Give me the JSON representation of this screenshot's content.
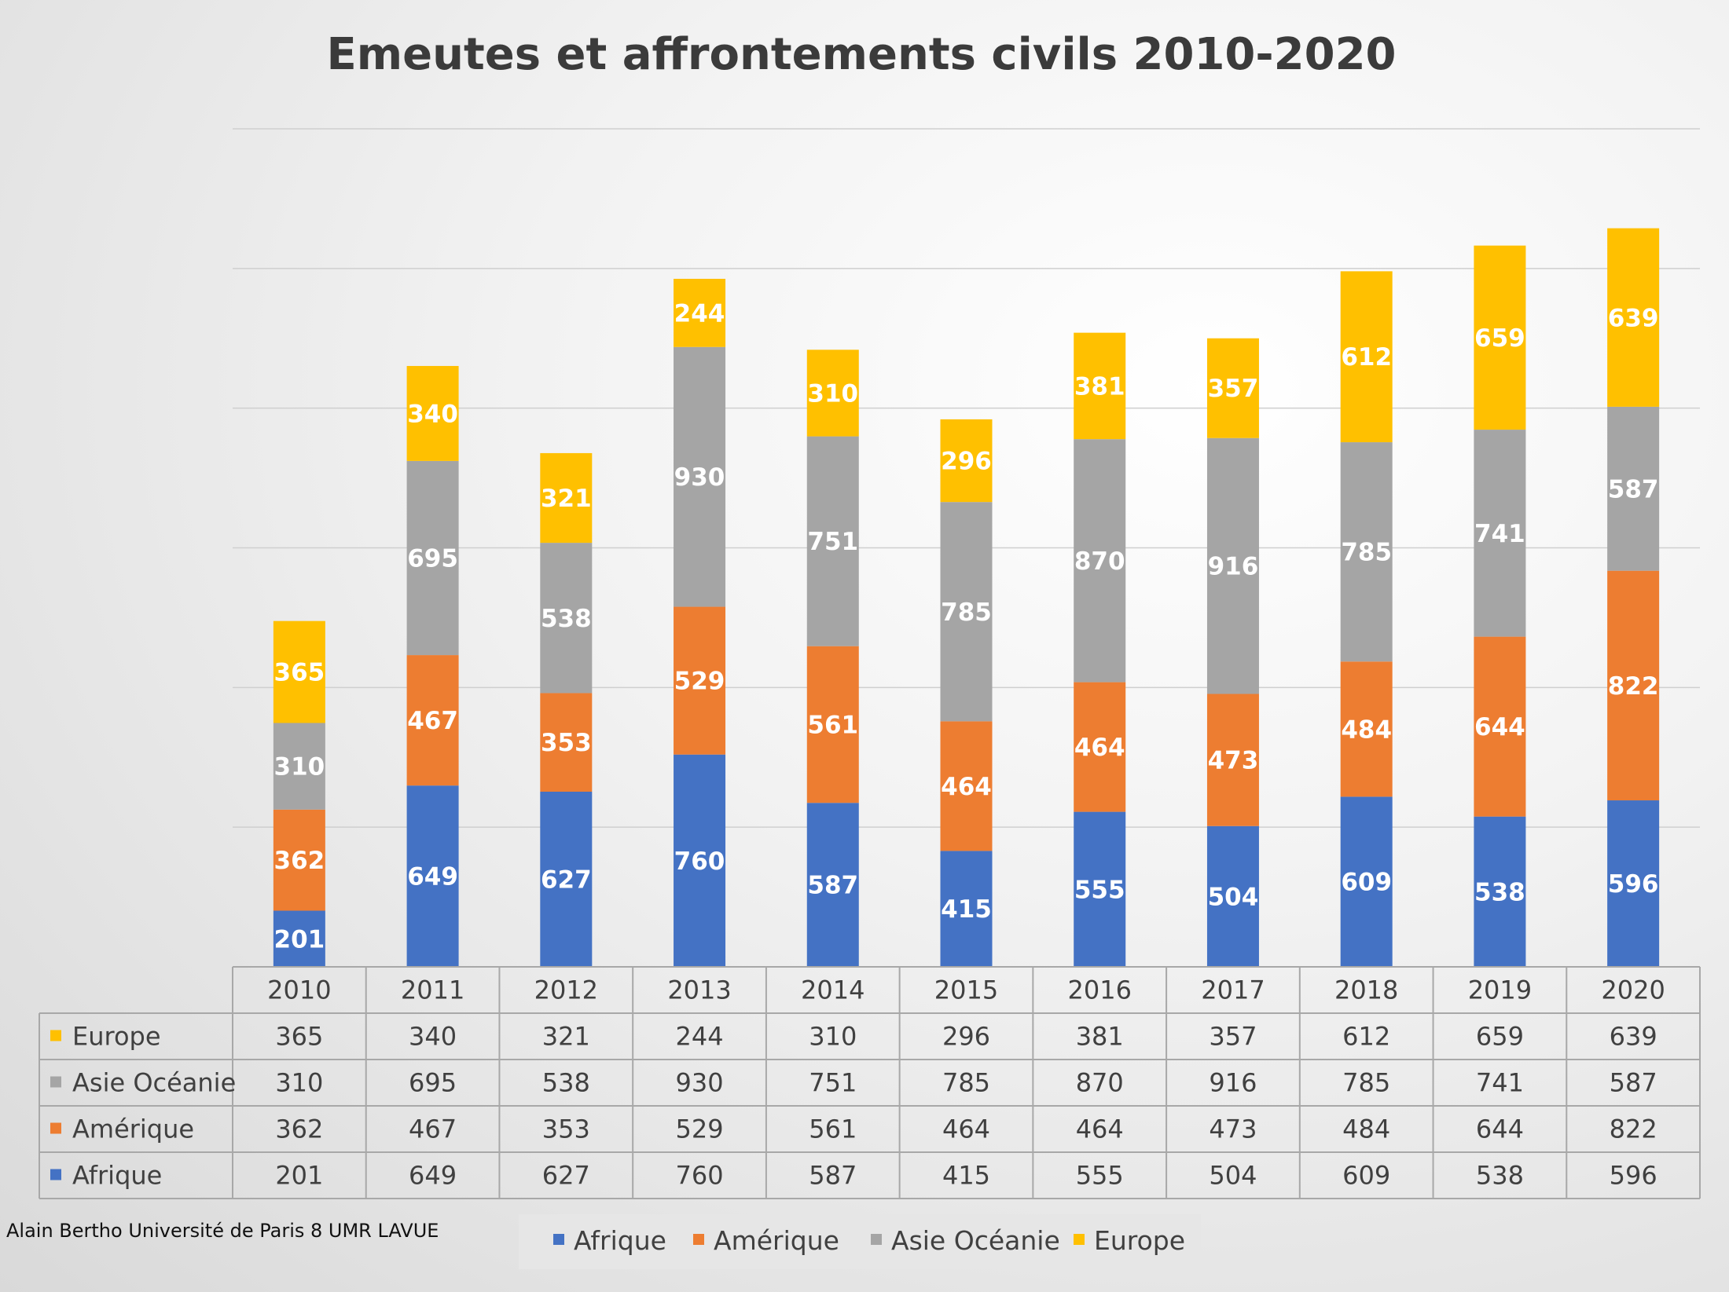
{
  "chart_data": {
    "type": "bar",
    "stacked": true,
    "title": "Emeutes et affrontements civils 2010-2020",
    "xlabel": "",
    "ylabel": "",
    "categories": [
      "2010",
      "2011",
      "2012",
      "2013",
      "2014",
      "2015",
      "2016",
      "2017",
      "2018",
      "2019",
      "2020"
    ],
    "series": [
      {
        "name": "Afrique",
        "color": "#4472C4",
        "values": [
          201,
          649,
          627,
          760,
          587,
          415,
          555,
          504,
          609,
          538,
          596
        ]
      },
      {
        "name": "Amérique",
        "color": "#ED7D31",
        "values": [
          362,
          467,
          353,
          529,
          561,
          464,
          464,
          473,
          484,
          644,
          822
        ]
      },
      {
        "name": "Asie Océanie",
        "color": "#A5A5A5",
        "values": [
          310,
          695,
          538,
          930,
          751,
          785,
          870,
          916,
          785,
          741,
          587
        ]
      },
      {
        "name": "Europe",
        "color": "#FFC000",
        "values": [
          365,
          340,
          321,
          244,
          310,
          296,
          381,
          357,
          612,
          659,
          639
        ]
      }
    ],
    "ylim": [
      0,
      3000
    ],
    "y_grid_step": 500,
    "grid": true,
    "axis_tick_labels_shown": false,
    "data_labels": true,
    "data_table": true,
    "legend_position": "bottom"
  },
  "credit": "Alain Bertho Université de Paris 8 UMR LAVUE"
}
